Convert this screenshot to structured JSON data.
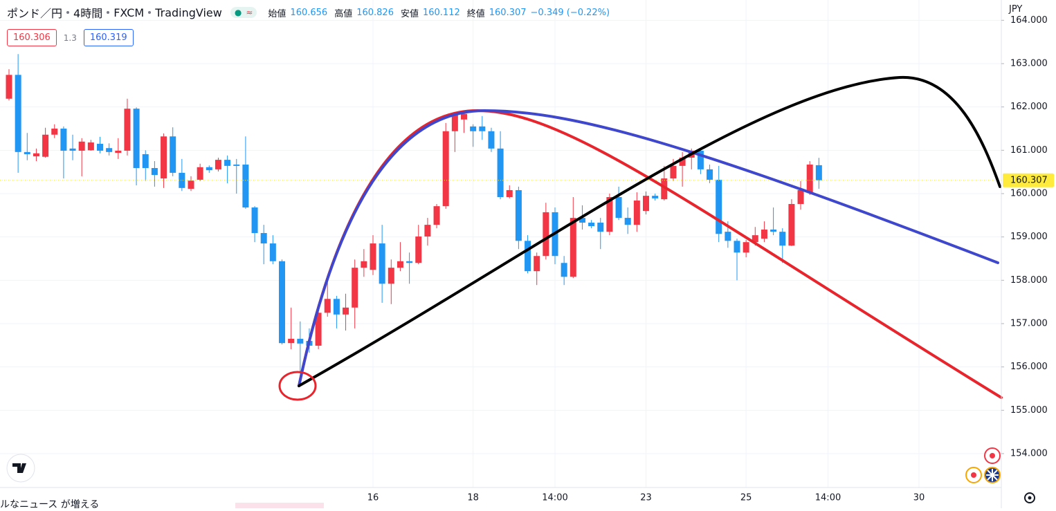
{
  "header": {
    "symbol": "ポンド／円",
    "interval": "4時間",
    "source": "FXCM",
    "platform": "TradingView",
    "open_label": "始値",
    "high_label": "高値",
    "low_label": "安値",
    "close_label": "終値",
    "change": "−0.349 (−0.22%)",
    "bid": "160.306",
    "spread": "1.3",
    "ask": "160.319",
    "currency": "JPY",
    "news": "ルなニュース が増える"
  },
  "chart_data": {
    "type": "candlestick",
    "up_color": "#f23645",
    "down_color": "#2196f3",
    "last_price_color": "#ffeb3b",
    "ylim": [
      153.218,
      164.468
    ],
    "yticks": [
      {
        "value": 154,
        "label": "154.000"
      },
      {
        "value": 155,
        "label": "155.000"
      },
      {
        "value": 156,
        "label": "156.000"
      },
      {
        "value": 157,
        "label": "157.000"
      },
      {
        "value": 158,
        "label": "158.000"
      },
      {
        "value": 159,
        "label": "159.000"
      },
      {
        "value": 160,
        "label": "160.000"
      },
      {
        "value": 161,
        "label": "161.000"
      },
      {
        "value": 162,
        "label": "162.000"
      },
      {
        "value": 163,
        "label": "163.000"
      },
      {
        "value": 164,
        "label": "164.000"
      }
    ],
    "grid": true,
    "categories": [
      null,
      null,
      null,
      null,
      null,
      null,
      null,
      null,
      null,
      null,
      null,
      null,
      null,
      null,
      null,
      null,
      null,
      null,
      null,
      null,
      null,
      null,
      null,
      null,
      null,
      null,
      null,
      null,
      null,
      null,
      null,
      null,
      null,
      null,
      null,
      null,
      null,
      null,
      null,
      null,
      "16",
      null,
      null,
      null,
      null,
      null,
      null,
      null,
      null,
      null,
      null,
      "18",
      null,
      null,
      null,
      null,
      null,
      null,
      null,
      null,
      "14:00",
      null,
      null,
      null,
      null,
      null,
      null,
      null,
      null,
      null,
      "23",
      null,
      null,
      null,
      null,
      null,
      null,
      null,
      null,
      null,
      null,
      "25",
      null,
      null,
      null,
      null,
      null,
      null,
      null,
      null,
      "14:00",
      null,
      null,
      null,
      null,
      null,
      null,
      null,
      null,
      null,
      "30",
      null,
      null,
      null,
      null,
      null,
      null,
      null,
      null
    ],
    "open": [
      162.19,
      162.74,
      160.96,
      160.86,
      160.85,
      161.36,
      161.5,
      161.04,
      160.99,
      161.0,
      161.15,
      161.05,
      160.94,
      160.99,
      161.96,
      160.91,
      160.59,
      160.35,
      161.32,
      160.48,
      160.11,
      160.32,
      160.61,
      160.56,
      160.78,
      160.67,
      160.67,
      159.68,
      159.09,
      158.85,
      158.44,
      156.55,
      156.65,
      156.6,
      156.49,
      157.25,
      157.57,
      157.21,
      157.37,
      158.29,
      158.24,
      158.85,
      157.92,
      158.29,
      158.44,
      158.4,
      159.01,
      159.28,
      159.71,
      161.44,
      161.71,
      161.55,
      161.55,
      161.44,
      161.04,
      159.92,
      160.08,
      158.91,
      158.21,
      158.56,
      159.57,
      158.4,
      158.08,
      159.44,
      159.33,
      159.33,
      159.12,
      159.92,
      159.44,
      159.28,
      159.6,
      159.95,
      159.87,
      160.35,
      160.64,
      160.83,
      160.99,
      160.56,
      160.32,
      159.12,
      158.91,
      158.64,
      158.88,
      158.96,
      159.17,
      159.12,
      158.8,
      159.76,
      160.03,
      160.656,
      null,
      null,
      null,
      null,
      null,
      null,
      null,
      null,
      null,
      null,
      null,
      null,
      null,
      null,
      null,
      null,
      null,
      null,
      null
    ],
    "high": [
      162.87,
      163.22,
      161.4,
      161.04,
      161.52,
      161.6,
      161.55,
      161.36,
      161.28,
      161.24,
      161.31,
      161.16,
      161.28,
      162.19,
      161.99,
      161.0,
      160.75,
      161.39,
      161.53,
      160.8,
      160.4,
      160.69,
      160.65,
      160.83,
      160.88,
      160.8,
      161.32,
      159.71,
      159.28,
      159.04,
      158.48,
      157.37,
      157.05,
      156.89,
      157.37,
      157.97,
      157.64,
      157.69,
      158.48,
      158.72,
      159.04,
      159.28,
      158.48,
      158.88,
      158.64,
      159.28,
      159.44,
      159.76,
      161.63,
      161.88,
      161.91,
      161.6,
      161.79,
      161.52,
      161.44,
      160.19,
      160.16,
      159.04,
      158.64,
      159.79,
      159.68,
      158.56,
      159.92,
      159.73,
      159.39,
      159.44,
      160.0,
      160.16,
      159.68,
      160.03,
      160.05,
      160.0,
      160.64,
      160.8,
      160.96,
      161.04,
      161.04,
      160.67,
      160.64,
      159.36,
      158.96,
      158.93,
      159.23,
      159.36,
      159.68,
      159.2,
      159.87,
      160.29,
      160.75,
      160.826,
      null,
      null,
      null,
      null,
      null,
      null,
      null,
      null,
      null,
      null,
      null,
      null,
      null,
      null,
      null,
      null,
      null,
      null,
      null
    ],
    "low": [
      162.15,
      160.48,
      160.77,
      160.75,
      160.83,
      161.28,
      160.35,
      160.77,
      160.4,
      160.99,
      160.93,
      160.88,
      160.8,
      160.88,
      160.19,
      160.29,
      160.16,
      160.13,
      160.4,
      160.06,
      160.06,
      160.29,
      160.48,
      160.51,
      160.24,
      160.0,
      159.65,
      158.88,
      158.37,
      158.37,
      156.52,
      156.41,
      155.85,
      156.33,
      156.41,
      157.16,
      156.89,
      156.84,
      156.89,
      158.08,
      158.12,
      157.48,
      157.45,
      158.21,
      157.92,
      158.37,
      158.8,
      159.2,
      159.65,
      160.96,
      161.4,
      161.08,
      161.24,
      160.96,
      159.87,
      159.89,
      158.72,
      158.16,
      157.89,
      158.48,
      158.37,
      157.89,
      158.05,
      159.17,
      159.2,
      158.72,
      159.04,
      159.39,
      159.07,
      159.12,
      159.52,
      159.84,
      159.84,
      160.29,
      160.16,
      160.56,
      160.45,
      160.24,
      158.88,
      158.75,
      158.0,
      158.53,
      158.8,
      158.88,
      159.04,
      158.4,
      158.79,
      159.63,
      159.97,
      160.112,
      null,
      null,
      null,
      null,
      null,
      null,
      null,
      null,
      null,
      null,
      null,
      null,
      null,
      null,
      null,
      null,
      null,
      null,
      null
    ],
    "close": [
      162.74,
      160.96,
      160.91,
      160.93,
      161.36,
      161.5,
      160.99,
      160.99,
      161.2,
      161.18,
      160.99,
      160.96,
      160.99,
      161.96,
      160.59,
      160.59,
      160.43,
      161.32,
      160.48,
      160.13,
      160.3,
      160.61,
      160.54,
      160.78,
      160.64,
      160.64,
      159.68,
      159.09,
      158.85,
      158.44,
      156.55,
      156.65,
      156.54,
      156.49,
      157.25,
      157.57,
      157.21,
      157.37,
      158.29,
      158.44,
      158.85,
      157.92,
      158.29,
      158.44,
      158.4,
      159.01,
      159.28,
      159.71,
      161.44,
      161.84,
      161.84,
      161.44,
      161.44,
      161.04,
      159.92,
      160.08,
      158.91,
      158.21,
      158.56,
      159.57,
      158.56,
      158.08,
      159.44,
      159.33,
      159.25,
      159.12,
      159.92,
      159.44,
      159.28,
      159.84,
      159.95,
      159.89,
      160.35,
      160.64,
      160.83,
      160.99,
      160.56,
      160.32,
      159.07,
      158.91,
      158.64,
      158.88,
      159.04,
      159.17,
      159.12,
      158.8,
      159.76,
      160.08,
      160.67,
      160.307,
      null,
      null,
      null,
      null,
      null,
      null,
      null,
      null,
      null,
      null,
      null,
      null,
      null,
      null,
      null,
      null,
      null,
      null,
      null
    ]
  }
}
